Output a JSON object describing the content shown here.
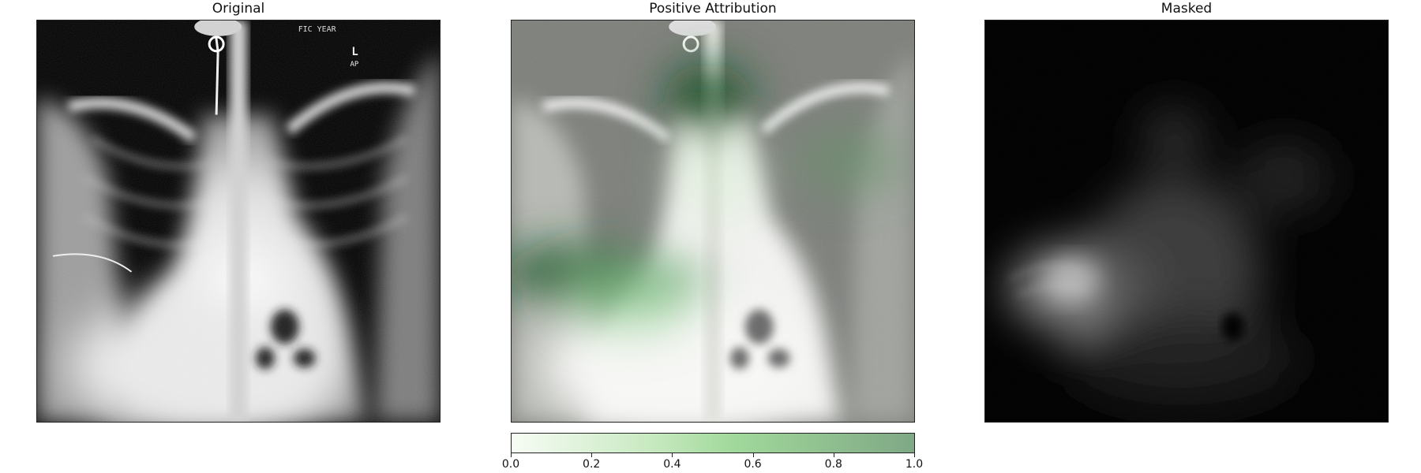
{
  "panels": {
    "original": {
      "title": "Original"
    },
    "attribution": {
      "title": "Positive Attribution"
    },
    "masked": {
      "title": "Masked"
    }
  },
  "colorbar": {
    "ticks": [
      "0.0",
      "0.2",
      "0.4",
      "0.6",
      "0.8",
      "1.0"
    ],
    "range": [
      0.0,
      1.0
    ],
    "colors": {
      "low": "#f7fcf5",
      "mid": "#a1d99b",
      "high": "#7fa885"
    }
  },
  "xray_annotations": {
    "top_text": "FIC YEAR",
    "side_marker": "L",
    "side_marker_sub": "AP"
  }
}
